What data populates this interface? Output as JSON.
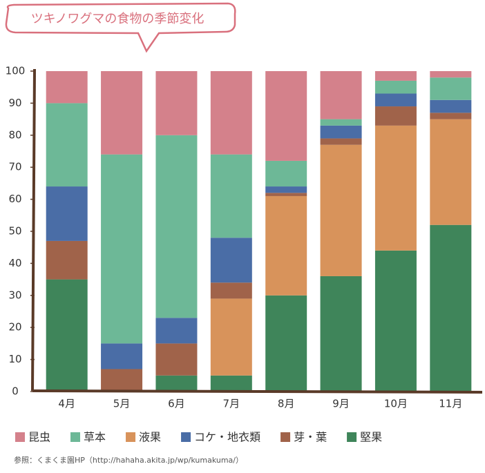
{
  "chart_data": {
    "type": "bar",
    "stacked": true,
    "title": "ツキノワグマの食物の季節変化",
    "source": "参照：くまくま園HP（http://hahaha.akita.jp/wp/kumakuma/）",
    "categories": [
      "4月",
      "5月",
      "6月",
      "7月",
      "8月",
      "9月",
      "10月",
      "11月"
    ],
    "series": [
      {
        "name": "昆虫",
        "color": "#d4818b",
        "values": [
          10,
          26,
          20,
          26,
          28,
          15,
          3,
          2
        ]
      },
      {
        "name": "草本",
        "color": "#6db897",
        "values": [
          26,
          59,
          57,
          26,
          8,
          2,
          4,
          7
        ]
      },
      {
        "name": "液果",
        "color": "#d8935b",
        "values": [
          0,
          0,
          0,
          24,
          31,
          41,
          39,
          33
        ]
      },
      {
        "name": "コケ・地衣類",
        "color": "#4a6da6",
        "values": [
          17,
          8,
          8,
          14,
          2,
          4,
          4,
          4
        ]
      },
      {
        "name": "芽・葉",
        "color": "#a0634a",
        "values": [
          12,
          7,
          10,
          5,
          1,
          2,
          6,
          2
        ]
      },
      {
        "name": "堅果",
        "color": "#3f855a",
        "values": [
          35,
          0,
          5,
          5,
          30,
          36,
          44,
          52
        ]
      }
    ],
    "ylim": [
      0,
      100
    ],
    "yticks": [
      0,
      10,
      20,
      30,
      40,
      50,
      60,
      70,
      80,
      90,
      100
    ]
  }
}
